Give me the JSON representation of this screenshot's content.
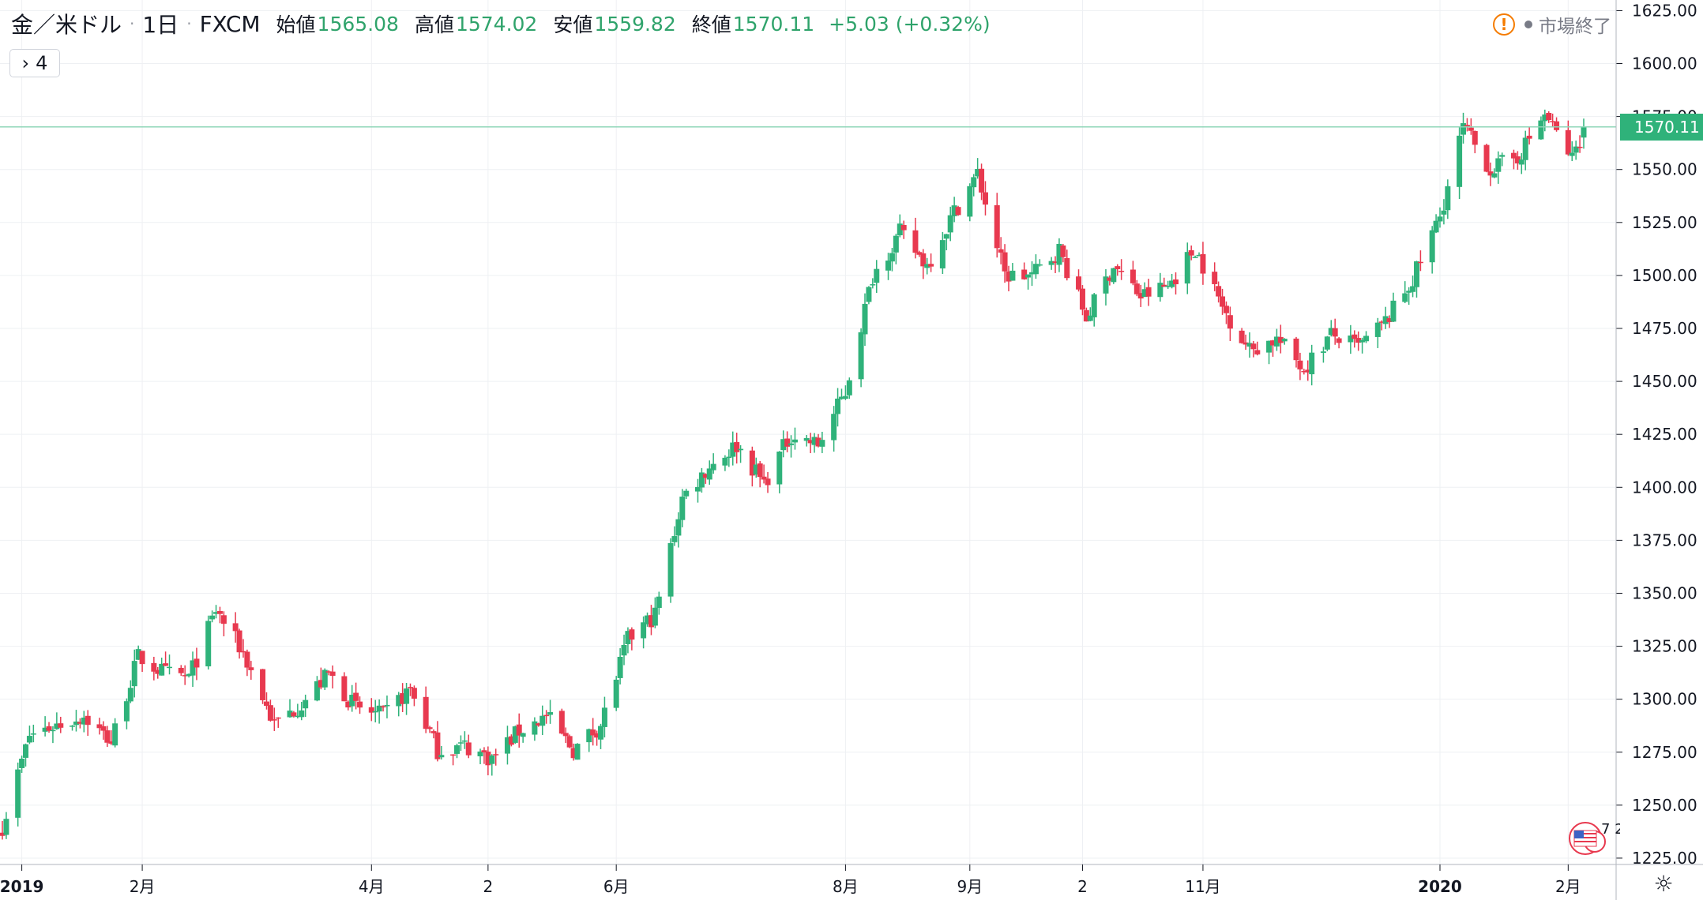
{
  "header": {
    "symbol": "金／米ドル",
    "interval": "1日",
    "exchange": "FXCM",
    "open_label": "始値",
    "open": "1565.08",
    "high_label": "高値",
    "high": "1574.02",
    "low_label": "安値",
    "low": "1559.82",
    "close_label": "終値",
    "close": "1570.11",
    "change": "+5.03 (+0.32%)"
  },
  "collapse_button": {
    "chevron": "›",
    "count": "4"
  },
  "market_status": {
    "text": "市場終了",
    "icon": "warning-icon"
  },
  "current_price": "1570.11",
  "event_marker_text": "7 2",
  "colors": {
    "up": "#2fb27a",
    "down": "#e8394f",
    "grid": "#eef0f3",
    "price_line": "#8fd6b8",
    "axis_text": "#131722"
  },
  "chart_data": {
    "type": "candlestick",
    "title": "金／米ドル · 1日 · FXCM",
    "ylim": [
      1222,
      1630
    ],
    "y_ticks": [
      1225,
      1250,
      1275,
      1300,
      1325,
      1350,
      1375,
      1400,
      1425,
      1450,
      1475,
      1500,
      1525,
      1550,
      1575,
      1600,
      1625
    ],
    "x_ticks": [
      {
        "label": "2019",
        "date": "2019-01-01",
        "bold": true
      },
      {
        "label": "2月",
        "date": "2019-02-01"
      },
      {
        "label": "4月",
        "date": "2019-04-01"
      },
      {
        "label": "2",
        "date": "2019-05-01"
      },
      {
        "label": "6月",
        "date": "2019-06-03"
      },
      {
        "label": "8月",
        "date": "2019-08-01"
      },
      {
        "label": "9月",
        "date": "2019-09-02"
      },
      {
        "label": "2",
        "date": "2019-10-01"
      },
      {
        "label": "11月",
        "date": "2019-11-01"
      },
      {
        "label": "2020",
        "date": "2020-01-01",
        "bold": true
      },
      {
        "label": "2月",
        "date": "2020-02-03"
      }
    ],
    "anchors": [
      {
        "date": "2018-12-27",
        "value": 1240
      },
      {
        "date": "2019-01-03",
        "value": 1283
      },
      {
        "date": "2019-01-10",
        "value": 1288
      },
      {
        "date": "2019-01-17",
        "value": 1292
      },
      {
        "date": "2019-01-24",
        "value": 1280
      },
      {
        "date": "2019-01-31",
        "value": 1320
      },
      {
        "date": "2019-02-07",
        "value": 1312
      },
      {
        "date": "2019-02-13",
        "value": 1310
      },
      {
        "date": "2019-02-20",
        "value": 1342
      },
      {
        "date": "2019-02-27",
        "value": 1322
      },
      {
        "date": "2019-03-07",
        "value": 1288
      },
      {
        "date": "2019-03-14",
        "value": 1298
      },
      {
        "date": "2019-03-21",
        "value": 1312
      },
      {
        "date": "2019-03-28",
        "value": 1296
      },
      {
        "date": "2019-04-04",
        "value": 1292
      },
      {
        "date": "2019-04-11",
        "value": 1305
      },
      {
        "date": "2019-04-18",
        "value": 1276
      },
      {
        "date": "2019-04-25",
        "value": 1278
      },
      {
        "date": "2019-05-02",
        "value": 1272
      },
      {
        "date": "2019-05-09",
        "value": 1285
      },
      {
        "date": "2019-05-16",
        "value": 1292
      },
      {
        "date": "2019-05-23",
        "value": 1276
      },
      {
        "date": "2019-05-30",
        "value": 1288
      },
      {
        "date": "2019-06-06",
        "value": 1328
      },
      {
        "date": "2019-06-13",
        "value": 1340
      },
      {
        "date": "2019-06-20",
        "value": 1395
      },
      {
        "date": "2019-06-27",
        "value": 1410
      },
      {
        "date": "2019-07-04",
        "value": 1420
      },
      {
        "date": "2019-07-11",
        "value": 1402
      },
      {
        "date": "2019-07-18",
        "value": 1425
      },
      {
        "date": "2019-07-25",
        "value": 1420
      },
      {
        "date": "2019-08-01",
        "value": 1445
      },
      {
        "date": "2019-08-08",
        "value": 1500
      },
      {
        "date": "2019-08-15",
        "value": 1520
      },
      {
        "date": "2019-08-22",
        "value": 1505
      },
      {
        "date": "2019-08-29",
        "value": 1530
      },
      {
        "date": "2019-09-04",
        "value": 1548
      },
      {
        "date": "2019-09-11",
        "value": 1500
      },
      {
        "date": "2019-09-18",
        "value": 1500
      },
      {
        "date": "2019-09-25",
        "value": 1512
      },
      {
        "date": "2019-10-02",
        "value": 1480
      },
      {
        "date": "2019-10-09",
        "value": 1505
      },
      {
        "date": "2019-10-16",
        "value": 1490
      },
      {
        "date": "2019-10-23",
        "value": 1495
      },
      {
        "date": "2019-10-30",
        "value": 1513
      },
      {
        "date": "2019-11-06",
        "value": 1485
      },
      {
        "date": "2019-11-13",
        "value": 1465
      },
      {
        "date": "2019-11-20",
        "value": 1470
      },
      {
        "date": "2019-11-27",
        "value": 1456
      },
      {
        "date": "2019-12-04",
        "value": 1472
      },
      {
        "date": "2019-12-11",
        "value": 1466
      },
      {
        "date": "2019-12-18",
        "value": 1478
      },
      {
        "date": "2019-12-25",
        "value": 1498
      },
      {
        "date": "2020-01-01",
        "value": 1528
      },
      {
        "date": "2020-01-07",
        "value": 1570
      },
      {
        "date": "2020-01-14",
        "value": 1550
      },
      {
        "date": "2020-01-21",
        "value": 1556
      },
      {
        "date": "2020-01-28",
        "value": 1576
      },
      {
        "date": "2020-02-04",
        "value": 1555
      },
      {
        "date": "2020-02-07",
        "value": 1570
      }
    ],
    "last_candle": {
      "date": "2020-02-07",
      "open": 1565.08,
      "high": 1574.02,
      "low": 1559.82,
      "close": 1570.11
    }
  }
}
